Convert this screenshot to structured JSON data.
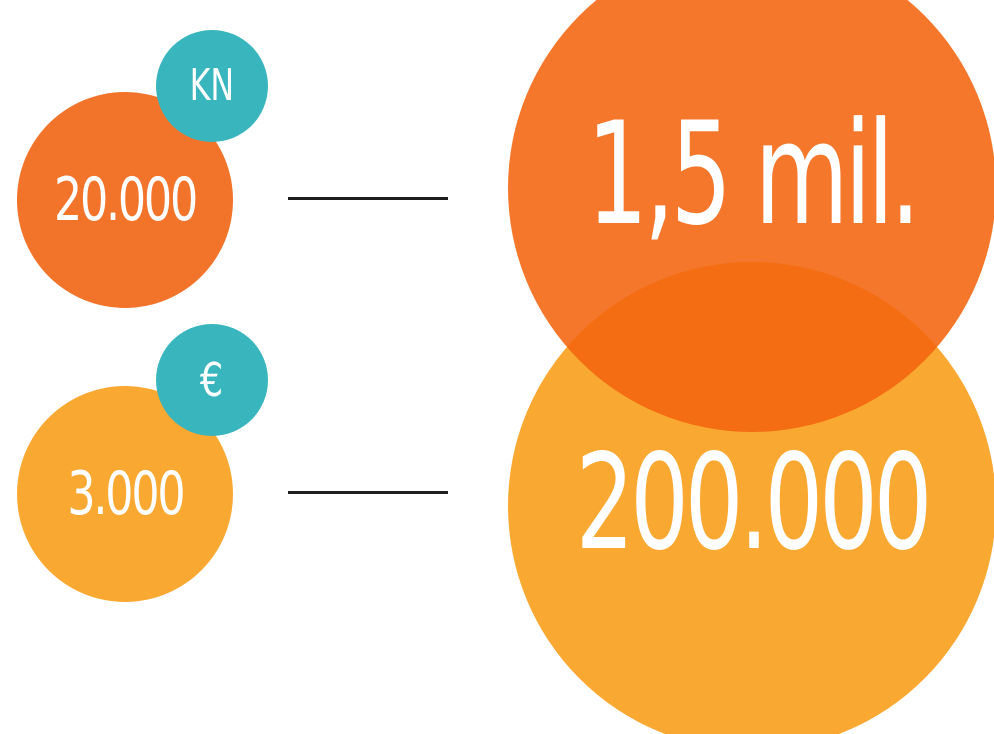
{
  "colors": {
    "orange_dark": "#f2732a",
    "orange_light": "#f9a932",
    "overlap": "#f0500c",
    "teal": "#39b5bd",
    "line": "#1e1e1e"
  },
  "rows": [
    {
      "currency_label": "KN",
      "small_amount": "20.000",
      "big_amount": "1,5 mil."
    },
    {
      "currency_label": "€",
      "small_amount": "3.000",
      "big_amount": "200.000"
    }
  ]
}
